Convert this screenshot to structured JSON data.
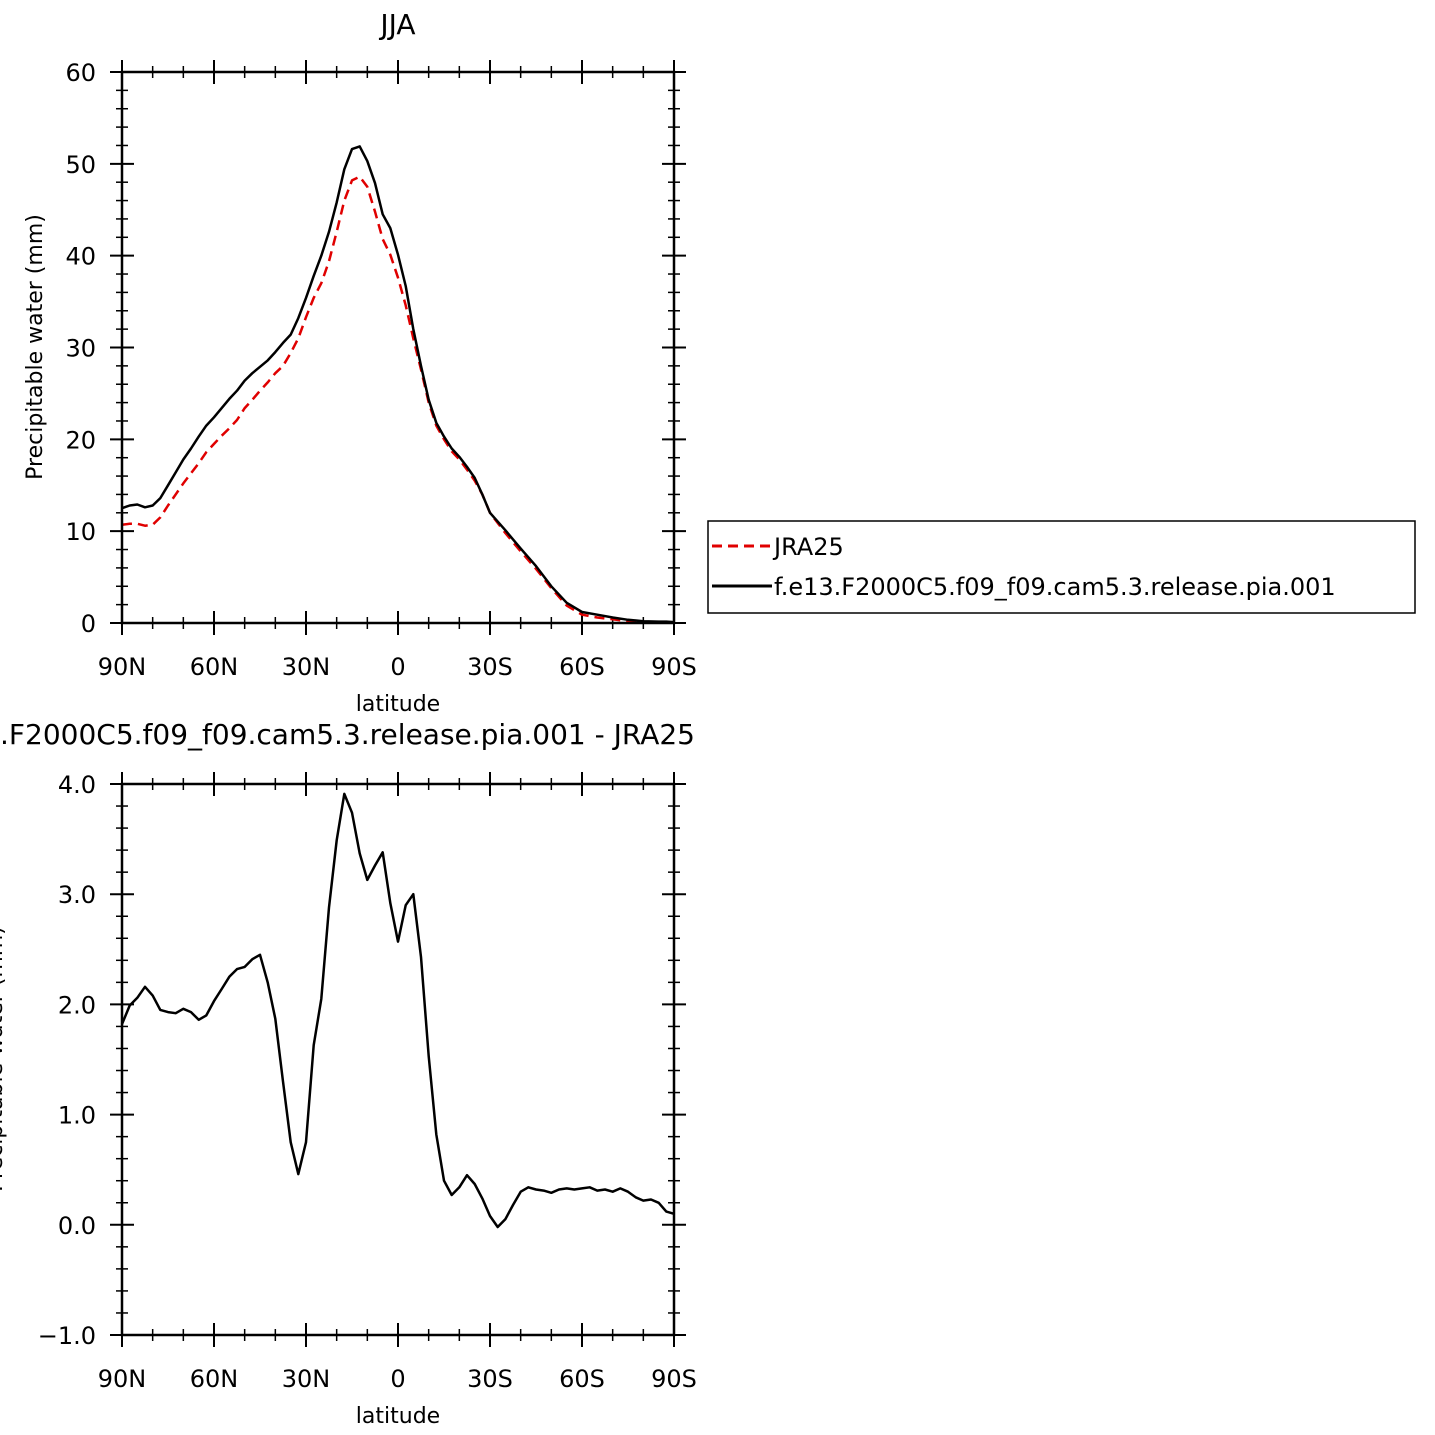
{
  "chart_data": [
    {
      "type": "line",
      "title": "JJA",
      "xlabel": "latitude",
      "ylabel": "Precipitable water (mm)",
      "xlim": [
        90,
        -90
      ],
      "ylim": [
        0,
        60
      ],
      "x_ticks": [
        {
          "value": 90,
          "label": "90N"
        },
        {
          "value": 60,
          "label": "60N"
        },
        {
          "value": 30,
          "label": "30N"
        },
        {
          "value": 0,
          "label": "0"
        },
        {
          "value": -30,
          "label": "30S"
        },
        {
          "value": -60,
          "label": "60S"
        },
        {
          "value": -90,
          "label": "90S"
        }
      ],
      "y_ticks": [
        {
          "value": 0,
          "label": "0"
        },
        {
          "value": 10,
          "label": "10"
        },
        {
          "value": 20,
          "label": "20"
        },
        {
          "value": 30,
          "label": "30"
        },
        {
          "value": 40,
          "label": "40"
        },
        {
          "value": 50,
          "label": "50"
        },
        {
          "value": 60,
          "label": "60"
        }
      ],
      "legend_position": "right",
      "series": [
        {
          "name": "JRA25",
          "color": "#e00000",
          "dash": "dashed",
          "x": [
            90,
            87.5,
            85,
            82.5,
            80,
            77.5,
            75,
            72.5,
            70,
            67.5,
            65,
            62.5,
            60,
            57.5,
            55,
            52.5,
            50,
            47.5,
            45,
            42.5,
            40,
            37.5,
            35,
            32.5,
            30,
            27.5,
            25,
            22.5,
            20,
            17.5,
            15,
            12.5,
            10,
            7.5,
            5,
            2.5,
            0,
            -2.5,
            -5,
            -7.5,
            -10,
            -12.5,
            -15,
            -17.5,
            -20,
            -22.5,
            -25,
            -27.5,
            -30,
            -35,
            -40,
            -45,
            -50,
            -55,
            -60,
            -65,
            -70,
            -75,
            -80,
            -85,
            -87.5,
            -90
          ],
          "y": [
            10.7,
            10.8,
            10.8,
            10.6,
            10.7,
            11.5,
            12.8,
            14.0,
            15.2,
            16.3,
            17.4,
            18.6,
            19.5,
            20.4,
            21.2,
            22.1,
            23.4,
            24.3,
            25.3,
            26.2,
            27.2,
            28.0,
            29.4,
            31.0,
            33.3,
            35.4,
            37.0,
            39.4,
            42.6,
            46.0,
            48.2,
            48.6,
            47.5,
            44.8,
            41.8,
            40.1,
            37.6,
            34.6,
            31.0,
            27.6,
            24.0,
            21.5,
            20.0,
            18.7,
            17.8,
            16.7,
            15.5,
            14.0,
            12.0,
            9.8,
            7.8,
            5.9,
            3.8,
            1.9,
            0.9,
            0.6,
            0.4,
            0.2,
            0.1,
            0.05,
            0.05,
            0.05
          ]
        },
        {
          "name": "f.e13.F2000C5.f09_f09.cam5.3.release.pia.001",
          "color": "#000000",
          "dash": "solid",
          "x": [
            90,
            87.5,
            85,
            82.5,
            80,
            77.5,
            75,
            72.5,
            70,
            67.5,
            65,
            62.5,
            60,
            57.5,
            55,
            52.5,
            50,
            47.5,
            45,
            42.5,
            40,
            37.5,
            35,
            32.5,
            30,
            27.5,
            25,
            22.5,
            20,
            17.5,
            15,
            12.5,
            10,
            7.5,
            5,
            2.5,
            0,
            -2.5,
            -5,
            -7.5,
            -10,
            -12.5,
            -15,
            -17.5,
            -20,
            -22.5,
            -25,
            -27.5,
            -30,
            -35,
            -40,
            -45,
            -50,
            -55,
            -60,
            -65,
            -70,
            -75,
            -80,
            -85,
            -87.5,
            -90
          ],
          "y": [
            12.5,
            12.8,
            12.9,
            12.6,
            12.8,
            13.6,
            15.0,
            16.4,
            17.8,
            19.0,
            20.3,
            21.5,
            22.4,
            23.4,
            24.4,
            25.3,
            26.4,
            27.2,
            27.9,
            28.6,
            29.5,
            30.5,
            31.4,
            33.2,
            35.4,
            37.8,
            40.0,
            42.6,
            45.8,
            49.4,
            51.6,
            51.9,
            50.3,
            47.9,
            44.5,
            43.0,
            40.1,
            36.7,
            32.0,
            28.0,
            24.3,
            21.8,
            20.3,
            19.0,
            18.1,
            17.0,
            15.8,
            14.0,
            12.0,
            10.1,
            8.1,
            6.2,
            4.0,
            2.2,
            1.2,
            0.9,
            0.6,
            0.35,
            0.2,
            0.15,
            0.15,
            0.1
          ]
        }
      ]
    },
    {
      "type": "line",
      "title": ".F2000C5.f09_f09.cam5.3.release.pia.001 - JRA25",
      "xlabel": "latitude",
      "ylabel": "Precipitable water (mm)",
      "xlim": [
        90,
        -90
      ],
      "ylim": [
        -1,
        4
      ],
      "x_ticks": [
        {
          "value": 90,
          "label": "90N"
        },
        {
          "value": 60,
          "label": "60N"
        },
        {
          "value": 30,
          "label": "30N"
        },
        {
          "value": 0,
          "label": "0"
        },
        {
          "value": -30,
          "label": "30S"
        },
        {
          "value": -60,
          "label": "60S"
        },
        {
          "value": -90,
          "label": "90S"
        }
      ],
      "y_ticks": [
        {
          "value": -1,
          "label": "−1.0"
        },
        {
          "value": 0,
          "label": "0.0"
        },
        {
          "value": 1,
          "label": "1.0"
        },
        {
          "value": 2,
          "label": "2.0"
        },
        {
          "value": 3,
          "label": "3.0"
        },
        {
          "value": 4,
          "label": "4.0"
        }
      ],
      "series": [
        {
          "color": "#000000",
          "dash": "solid",
          "x": [
            90,
            87.5,
            85,
            82.5,
            80,
            77.5,
            75,
            72.5,
            70,
            67.5,
            65,
            62.5,
            60,
            57.5,
            55,
            52.5,
            50,
            47.5,
            45,
            42.5,
            40,
            37.5,
            35,
            32.5,
            30,
            27.5,
            25,
            22.5,
            20,
            17.5,
            15,
            12.5,
            10,
            7.5,
            5,
            2.5,
            0,
            -2.5,
            -5,
            -7.5,
            -10,
            -12.5,
            -15,
            -17.5,
            -20,
            -22.5,
            -25,
            -27.5,
            -30,
            -32.5,
            -35,
            -37.5,
            -40,
            -42.5,
            -45,
            -47.5,
            -50,
            -52.5,
            -55,
            -57.5,
            -60,
            -62.5,
            -65,
            -67.5,
            -70,
            -72.5,
            -75,
            -77.5,
            -80,
            -82.5,
            -85,
            -87.5,
            -90
          ],
          "y": [
            1.82,
            1.99,
            2.06,
            2.16,
            2.08,
            1.95,
            1.93,
            1.92,
            1.96,
            1.93,
            1.86,
            1.9,
            2.03,
            2.14,
            2.25,
            2.32,
            2.34,
            2.41,
            2.45,
            2.2,
            1.87,
            1.3,
            0.75,
            0.46,
            0.75,
            1.63,
            2.05,
            2.88,
            3.49,
            3.91,
            3.74,
            3.37,
            3.13,
            3.26,
            3.38,
            2.92,
            2.57,
            2.9,
            3.0,
            2.43,
            1.53,
            0.82,
            0.4,
            0.27,
            0.34,
            0.45,
            0.37,
            0.24,
            0.08,
            -0.02,
            0.05,
            0.18,
            0.3,
            0.34,
            0.32,
            0.31,
            0.29,
            0.32,
            0.33,
            0.32,
            0.33,
            0.34,
            0.31,
            0.32,
            0.3,
            0.33,
            0.3,
            0.25,
            0.22,
            0.23,
            0.2,
            0.12,
            0.1
          ]
        }
      ]
    }
  ]
}
